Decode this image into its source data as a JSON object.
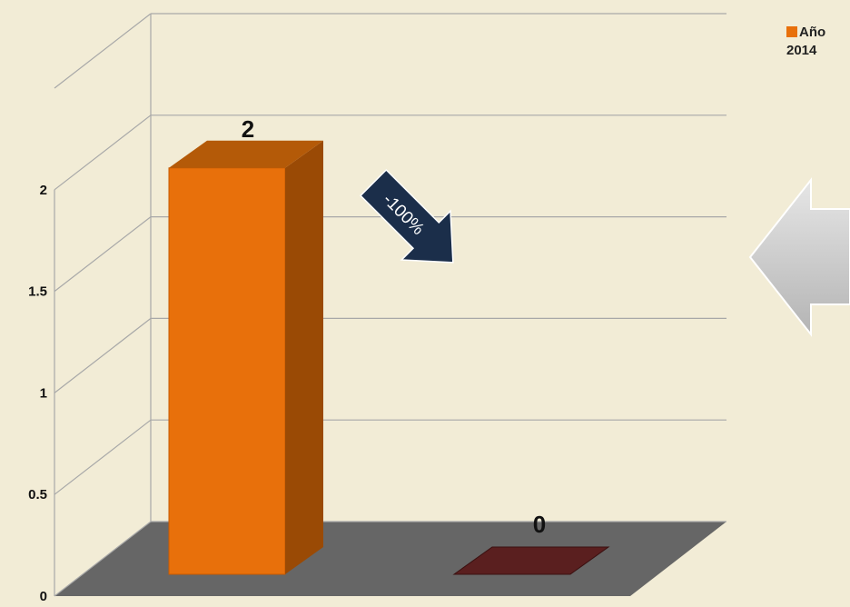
{
  "chart_data": {
    "type": "bar",
    "categories": [
      "",
      ""
    ],
    "series": [
      {
        "name": "Año 2014",
        "color": "#e8700b"
      }
    ],
    "bars": [
      {
        "value": 2,
        "label": "2",
        "color": "#e8700b"
      },
      {
        "value": 0,
        "label": "0",
        "color": "#5a1f1f"
      }
    ],
    "y_ticks": [
      "0",
      "0.5",
      "1",
      "1.5",
      "2"
    ],
    "ylim": [
      0,
      2.5
    ],
    "grid": true,
    "floor_color": "#666666",
    "legend_position": "top-right",
    "annotation": {
      "text": "-100%",
      "color": "#1b2e4a"
    },
    "side_arrow_icon": "left-arrow-icon"
  }
}
